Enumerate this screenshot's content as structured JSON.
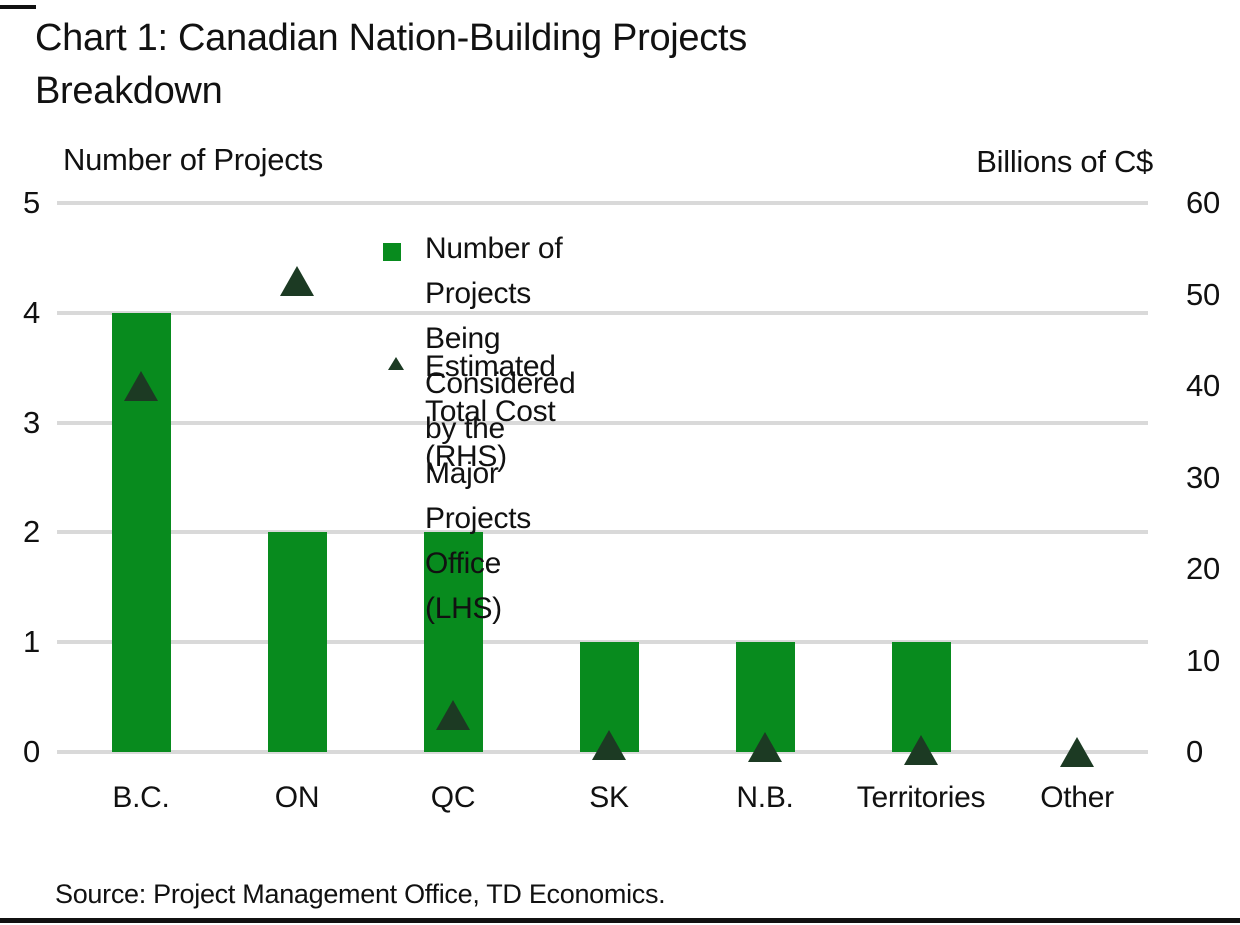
{
  "page": {
    "title": "Chart 1: Canadian Nation-Building Projects\nBreakdown",
    "source": "Source: Project Management Office, TD Economics."
  },
  "chart_data": {
    "type": "bar",
    "title": "Chart 1: Canadian Nation-Building Projects Breakdown",
    "categories": [
      "B.C.",
      "ON",
      "QC",
      "SK",
      "N.B.",
      "Territories",
      "Other"
    ],
    "series": [
      {
        "name": "Number of Projects Being Considered by the Major Projects Office (LHS)",
        "type": "bar",
        "axis": "left",
        "color": "#088b1e",
        "values": [
          4,
          2,
          2,
          1,
          1,
          1,
          0
        ]
      },
      {
        "name": "Estimated Total Cost (RHS)",
        "type": "scatter",
        "marker": "triangle-up",
        "axis": "right",
        "color": "#1c3a23",
        "values": [
          40,
          51.5,
          4,
          0.8,
          0.5,
          0.25,
          0
        ]
      }
    ],
    "left_axis": {
      "label": "Number of Projects",
      "min": 0,
      "max": 5,
      "ticks": [
        5,
        4,
        3,
        2,
        1,
        0
      ]
    },
    "right_axis": {
      "label": "Billions of C$",
      "min": 0,
      "max": 60,
      "ticks": [
        60,
        50,
        40,
        30,
        20,
        10,
        0
      ]
    },
    "grid": "horizontal",
    "legend": {
      "position": "inside-top",
      "items": [
        {
          "marker": "square",
          "color": "#088b1e",
          "text": "Number of Projects Being Considered\nby the Major Projects Office (LHS)"
        },
        {
          "marker": "triangle-up",
          "color": "#1c3a23",
          "text": "Estimated Total Cost (RHS)"
        }
      ]
    },
    "colors": {
      "gridline": "#d9d9d9",
      "text": "#111111",
      "bar": "#088b1e",
      "marker": "#1c3a23"
    }
  }
}
